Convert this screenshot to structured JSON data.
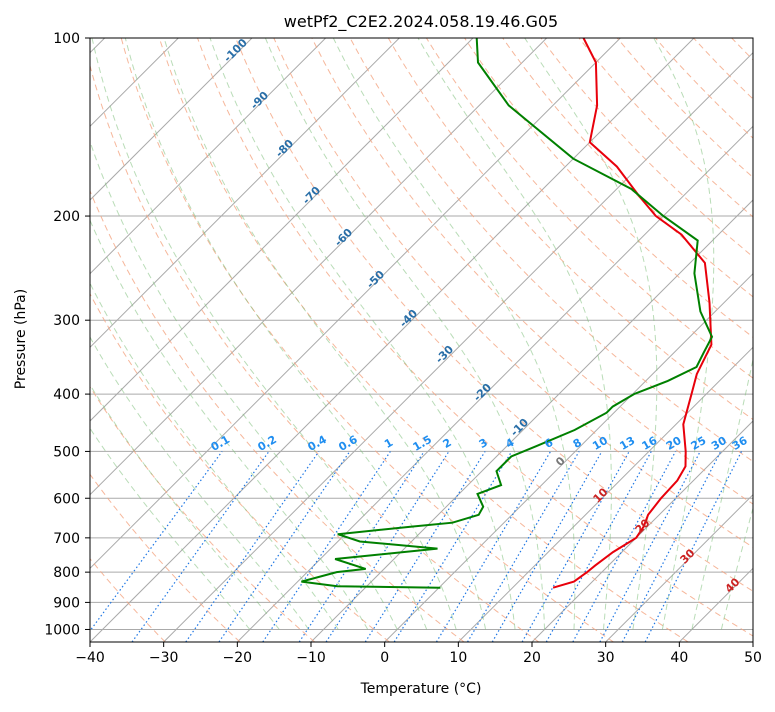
{
  "chart_data": {
    "type": "line",
    "subtype": "skew-t log-p diagram",
    "title": "wetPf2_C2E2.2024.058.19.46.G05",
    "xlabel": "Temperature (°C)",
    "ylabel": "Pressure (hPa)",
    "xlim": [
      -40,
      50
    ],
    "ylim": [
      1050,
      100
    ],
    "y_scale": "log",
    "grid": true,
    "x_ticks": [
      -40,
      -30,
      -20,
      -10,
      0,
      10,
      20,
      30,
      40,
      50
    ],
    "y_ticks": [
      100,
      200,
      300,
      400,
      500,
      600,
      700,
      800,
      900,
      1000
    ],
    "series": [
      {
        "color": "#e8000b",
        "points": [
          [
            15.5,
            850
          ],
          [
            17.5,
            830
          ],
          [
            18.0,
            800
          ],
          [
            18.2,
            780
          ],
          [
            18.8,
            740
          ],
          [
            20.0,
            700
          ],
          [
            19.5,
            670
          ],
          [
            18.5,
            640
          ],
          [
            18.0,
            600
          ],
          [
            17.8,
            560
          ],
          [
            17.0,
            530
          ],
          [
            15.0,
            500
          ],
          [
            11.0,
            450
          ],
          [
            8.0,
            400
          ],
          [
            6.0,
            370
          ],
          [
            4.0,
            330
          ],
          [
            -2.0,
            280
          ],
          [
            -8.0,
            240
          ],
          [
            -15.0,
            215
          ],
          [
            -21.0,
            200
          ],
          [
            -26.0,
            185
          ],
          [
            -33.0,
            165
          ],
          [
            -40.0,
            150
          ],
          [
            -44.0,
            130
          ],
          [
            -50.0,
            110
          ],
          [
            -55.0,
            100
          ]
        ]
      },
      {
        "color": "#008000",
        "points": [
          [
            0.2,
            850
          ],
          [
            -14.0,
            845
          ],
          [
            -19.5,
            830
          ],
          [
            -16.0,
            800
          ],
          [
            -12.5,
            790
          ],
          [
            -18.0,
            760
          ],
          [
            -5.5,
            730
          ],
          [
            -17.0,
            710
          ],
          [
            -21.0,
            690
          ],
          [
            -12.0,
            670
          ],
          [
            -7.0,
            660
          ],
          [
            -4.5,
            640
          ],
          [
            -5.0,
            620
          ],
          [
            -7.5,
            590
          ],
          [
            -5.5,
            570
          ],
          [
            -8.0,
            540
          ],
          [
            -8.0,
            510
          ],
          [
            -6.0,
            490
          ],
          [
            -3.0,
            460
          ],
          [
            -1.0,
            430
          ],
          [
            -1.0,
            420
          ],
          [
            0.2,
            400
          ],
          [
            3.0,
            380
          ],
          [
            5.0,
            360
          ],
          [
            4.0,
            340
          ],
          [
            3.0,
            320
          ],
          [
            -2.0,
            290
          ],
          [
            -8.0,
            250
          ],
          [
            -12.0,
            220
          ],
          [
            -20.0,
            200
          ],
          [
            -28.0,
            180
          ],
          [
            -40.0,
            160
          ],
          [
            -56.0,
            130
          ],
          [
            -66.0,
            110
          ],
          [
            -69.5,
            100
          ]
        ]
      }
    ],
    "dry_adiabat_labels": [
      "-100",
      "-90",
      "-80",
      "-70",
      "-60",
      "-50",
      "-40",
      "-30",
      "-20",
      "-10",
      "0",
      "10",
      "20",
      "30",
      "40"
    ],
    "mixing_ratio_labels": [
      "0.1",
      "0.2",
      "0.4",
      "0.6",
      "1",
      "1.5",
      "2",
      "3",
      "4",
      "6",
      "8",
      "10",
      "13",
      "16",
      "20",
      "25",
      "30",
      "36"
    ]
  }
}
